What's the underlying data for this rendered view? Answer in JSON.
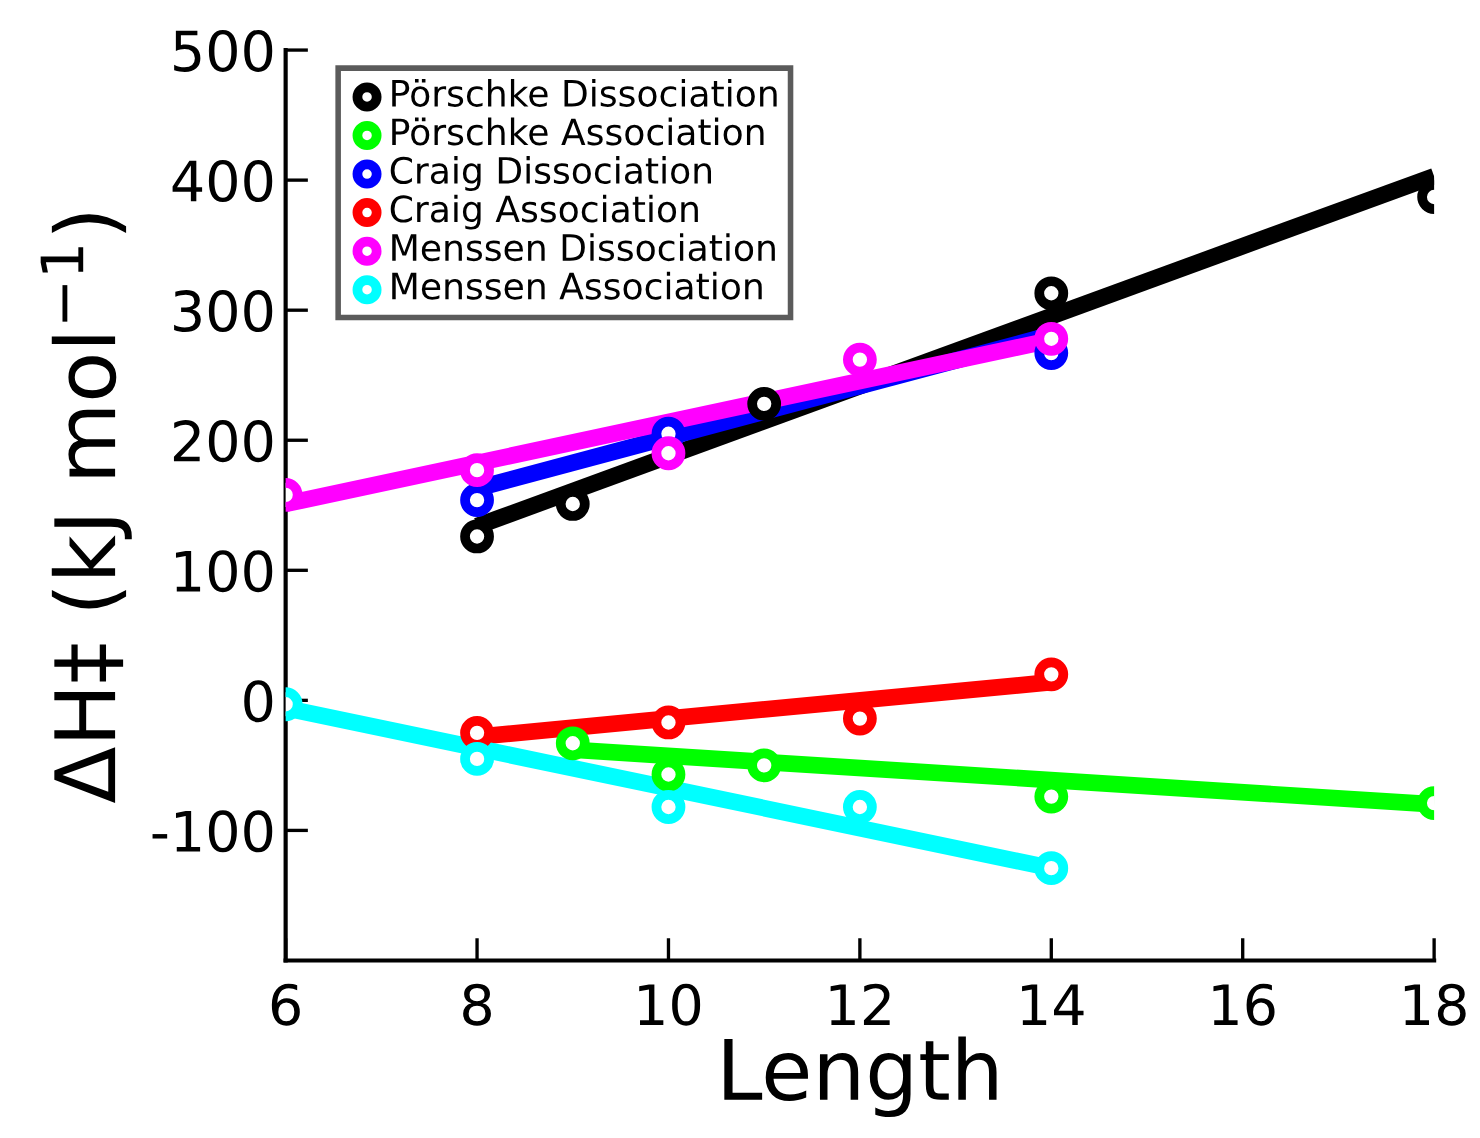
{
  "chart_data": {
    "type": "scatter",
    "xlabel": "Length",
    "ylabel": "ΔH‡ (kJ mol$^{−1}$)",
    "xlim": [
      6,
      18
    ],
    "xticks": [
      6,
      8,
      10,
      12,
      14,
      16,
      18
    ],
    "ylim": [
      -200,
      500
    ],
    "yticks": [
      -100,
      0,
      100,
      200,
      300,
      400,
      500
    ],
    "legend": "top left",
    "grid": false,
    "series": [
      {
        "name": "Pörschke Dissociation",
        "color": "#000000",
        "x": [
          8,
          9,
          10,
          11,
          12,
          14,
          18
        ],
        "values": [
          126,
          151,
          null,
          228,
          null,
          313,
          387
        ],
        "marker": "circle"
      },
      {
        "name": "Pörschke Association",
        "color": "#00ff00",
        "x": [
          9,
          10,
          11,
          14,
          18
        ],
        "values": [
          -33,
          -57,
          -50,
          -74,
          -79
        ],
        "marker": "circle"
      },
      {
        "name": "Craig Dissociation",
        "color": "#0000ff",
        "x": [
          8,
          10,
          12,
          14
        ],
        "values": [
          154,
          205,
          null,
          267
        ],
        "marker": "circle"
      },
      {
        "name": "Craig Association",
        "color": "#ff0000",
        "x": [
          8,
          10,
          12,
          14
        ],
        "values": [
          -25,
          -17,
          -14,
          20
        ],
        "marker": "circle"
      },
      {
        "name": "Menssen Dissociation",
        "color": "#ff00ff",
        "x": [
          6,
          8,
          10,
          12,
          14
        ],
        "values": [
          158,
          177,
          190,
          262,
          278
        ],
        "marker": "circle"
      },
      {
        "name": "Menssen Association",
        "color": "#00ffff",
        "x": [
          6,
          8,
          10,
          12,
          14
        ],
        "values": [
          -3,
          -45,
          -82,
          -82,
          -129
        ],
        "marker": "circle"
      },
      {
        "type": "line",
        "color": "#000000",
        "x": [
          8,
          18
        ],
        "values": [
          134,
          403
        ]
      },
      {
        "type": "line",
        "color": "#00ff00",
        "x": [
          9,
          18
        ],
        "values": [
          -38,
          -80
        ]
      },
      {
        "type": "line",
        "color": "#0000ff",
        "x": [
          8,
          14
        ],
        "values": [
          163,
          281
        ]
      },
      {
        "type": "line",
        "color": "#ff0000",
        "x": [
          8,
          14
        ],
        "values": [
          -28,
          14
        ]
      },
      {
        "type": "line",
        "color": "#ff00ff",
        "x": [
          6,
          14
        ],
        "values": [
          151,
          277
        ]
      },
      {
        "type": "line",
        "color": "#00ffff",
        "x": [
          6,
          14
        ],
        "values": [
          -6,
          -129
        ]
      }
    ]
  }
}
